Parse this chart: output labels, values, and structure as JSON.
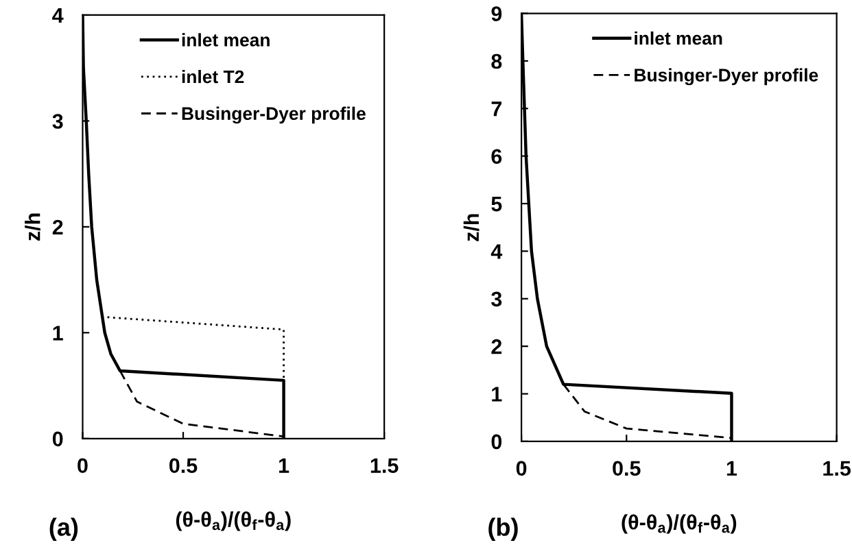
{
  "chart_data": [
    {
      "type": "line",
      "xlabel": "(θ-θ$_{a}$)/(θ$_{f}$-θ$_{a}$)",
      "ylabel": "z/h",
      "annotations": [
        "(a)"
      ],
      "xlim": [
        0,
        1.5
      ],
      "xticks": [
        0,
        0.5,
        1,
        1.5
      ],
      "ylim": [
        0,
        4
      ],
      "yticks": [
        0,
        1,
        2,
        3,
        4
      ],
      "grid": false,
      "legend": "top right",
      "marker": "none",
      "series": [
        {
          "name": "inlet mean",
          "color": "#000000",
          "line_style": "solid",
          "x": [
            0,
            0.004,
            0.018,
            0.03,
            0.045,
            0.07,
            0.11,
            0.14,
            0.186,
            1.0,
            1.0
          ],
          "values": [
            4,
            3.5,
            3.0,
            2.5,
            2.0,
            1.5,
            1.0,
            0.8,
            0.64,
            0.55,
            0.02
          ]
        },
        {
          "name": "inlet T2",
          "color": "#000000",
          "line_style": "dotted",
          "x": [
            0.095,
            1.0,
            1.0
          ],
          "values": [
            1.15,
            1.03,
            0.55
          ]
        },
        {
          "name": "Businger-Dyer profile",
          "color": "#000000",
          "line_style": "dashed",
          "x": [
            0.186,
            0.27,
            0.39,
            0.5,
            1.0
          ],
          "values": [
            0.64,
            0.35,
            0.24,
            0.14,
            0.02
          ]
        }
      ]
    },
    {
      "type": "line",
      "xlabel": "(θ-θ$_{a}$)/(θ$_{f}$-θ$_{a}$)",
      "ylabel": "z/h",
      "annotations": [
        "(b)"
      ],
      "xlim": [
        0,
        1.5
      ],
      "xticks": [
        0,
        0.5,
        1,
        1.5
      ],
      "ylim": [
        0,
        9
      ],
      "yticks": [
        0,
        1,
        2,
        3,
        4,
        5,
        6,
        7,
        8,
        9
      ],
      "grid": false,
      "legend": "top right",
      "marker": "none",
      "series": [
        {
          "name": "inlet mean",
          "color": "#000000",
          "line_style": "solid",
          "x": [
            0,
            0.007,
            0.022,
            0.035,
            0.048,
            0.076,
            0.12,
            0.2,
            1.0,
            1.0
          ],
          "values": [
            9,
            8,
            6,
            5,
            4,
            3,
            2,
            1.2,
            1.01,
            0
          ]
        },
        {
          "name": "Businger-Dyer profile",
          "color": "#000000",
          "line_style": "dashed",
          "x": [
            0.2,
            0.3,
            0.5,
            1.0
          ],
          "values": [
            1.2,
            0.63,
            0.27,
            0.07
          ]
        }
      ]
    }
  ]
}
